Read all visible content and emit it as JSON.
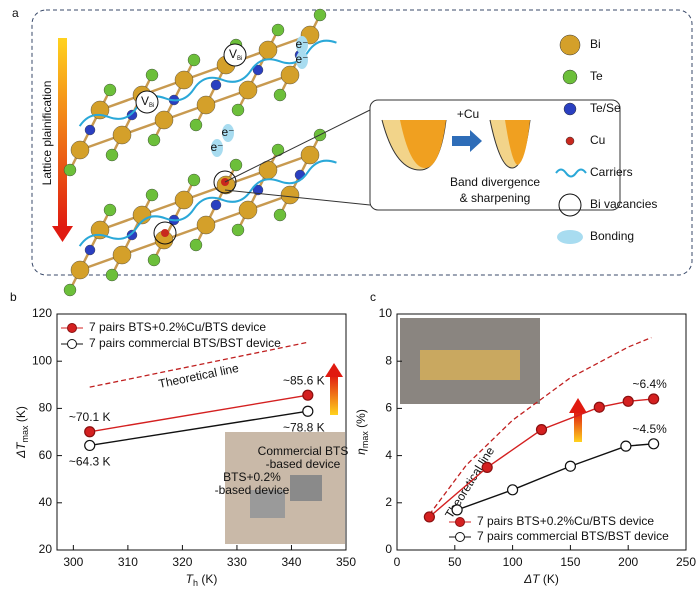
{
  "diagram": {
    "panel_label": "a",
    "arrow_label": "Lattice plainification",
    "legend": [
      {
        "label": "Bi",
        "kind": "atom",
        "color": "#d4a02a"
      },
      {
        "label": "Te",
        "kind": "atom",
        "color": "#6cbf3a"
      },
      {
        "label": "Te/Se",
        "kind": "atom",
        "color": "#2a3fc0"
      },
      {
        "label": "Cu",
        "kind": "atom",
        "color": "#c8281e"
      },
      {
        "label": "Carriers",
        "kind": "wave",
        "color": "#2aa8d8"
      },
      {
        "label": "Bi vacancies",
        "kind": "ring",
        "color": "#111111"
      },
      {
        "label": "Bonding",
        "kind": "ellipse",
        "color": "#a8dcf0"
      }
    ],
    "inset": {
      "top": "+Cu",
      "caption": [
        "Band divergence",
        "& sharpening"
      ]
    },
    "vacancy_label": {
      "main": "V",
      "sub": "Bi"
    },
    "electron_label": "e⁻"
  },
  "chart_data": [
    {
      "type": "line",
      "panel_label": "b",
      "x_label": {
        "main": "T",
        "sub": "h",
        "rest": " (K)"
      },
      "y_label": {
        "main": "ΔT",
        "sub": "max",
        "rest": " (K)"
      },
      "xlim": [
        297,
        350
      ],
      "xticks": [
        300,
        310,
        320,
        330,
        340,
        350
      ],
      "ylim": [
        20,
        120
      ],
      "yticks": [
        20,
        40,
        60,
        80,
        100,
        120
      ],
      "legend": "upper left",
      "series": [
        {
          "name": "7 pairs BTS+0.2%Cu/BTS device",
          "color": "#d42020",
          "filled": true,
          "label_side": "above",
          "x": [
            303,
            343
          ],
          "values": [
            70.1,
            85.6
          ],
          "value_labels": [
            "~70.1 K",
            "~85.6 K"
          ]
        },
        {
          "name": "7 pairs commercial  BTS/BST device",
          "color": "#111111",
          "filled": false,
          "label_side": "below",
          "x": [
            303,
            343
          ],
          "values": [
            64.3,
            78.8
          ],
          "value_labels": [
            "~64.3 K",
            "~78.8 K"
          ]
        }
      ],
      "theory": {
        "label": "Theoretical line",
        "color": "#c02020",
        "x": [
          303,
          343
        ],
        "values": [
          89,
          108
        ]
      },
      "photo_labels": [
        "Commercial BTS",
        "-based device",
        "BTS+0.2%",
        "-based device"
      ]
    },
    {
      "type": "line",
      "panel_label": "c",
      "x_label": {
        "main": "ΔT",
        "sub": "",
        "rest": " (K)"
      },
      "y_label": {
        "main": "η",
        "sub": "max",
        "rest": " (%)"
      },
      "xlim": [
        0,
        250
      ],
      "xticks": [
        0,
        50,
        100,
        150,
        200,
        250
      ],
      "ylim": [
        0,
        10
      ],
      "yticks": [
        0,
        2,
        4,
        6,
        8,
        10
      ],
      "legend": "lower right",
      "series": [
        {
          "name": "7 pairs BTS+0.2%Cu/BTS device",
          "color": "#d42020",
          "filled": true,
          "label_side": "above",
          "x": [
            28,
            78,
            125,
            175,
            200,
            222
          ],
          "values": [
            1.4,
            3.5,
            5.1,
            6.05,
            6.3,
            6.4
          ],
          "value_labels": [
            null,
            null,
            null,
            null,
            null,
            "~6.4%"
          ]
        },
        {
          "name": "7 pairs commercial BTS/BST device",
          "color": "#111111",
          "filled": false,
          "label_side": "above",
          "x": [
            52,
            100,
            150,
            198,
            222
          ],
          "values": [
            1.7,
            2.55,
            3.55,
            4.4,
            4.5
          ],
          "value_labels": [
            null,
            null,
            null,
            null,
            "~4.5%"
          ]
        }
      ],
      "theory": {
        "label": "Theoretical line",
        "color": "#c02020",
        "x": [
          28,
          60,
          100,
          150,
          200,
          220
        ],
        "values": [
          1.5,
          3.6,
          5.5,
          7.3,
          8.6,
          9.0
        ]
      }
    }
  ]
}
